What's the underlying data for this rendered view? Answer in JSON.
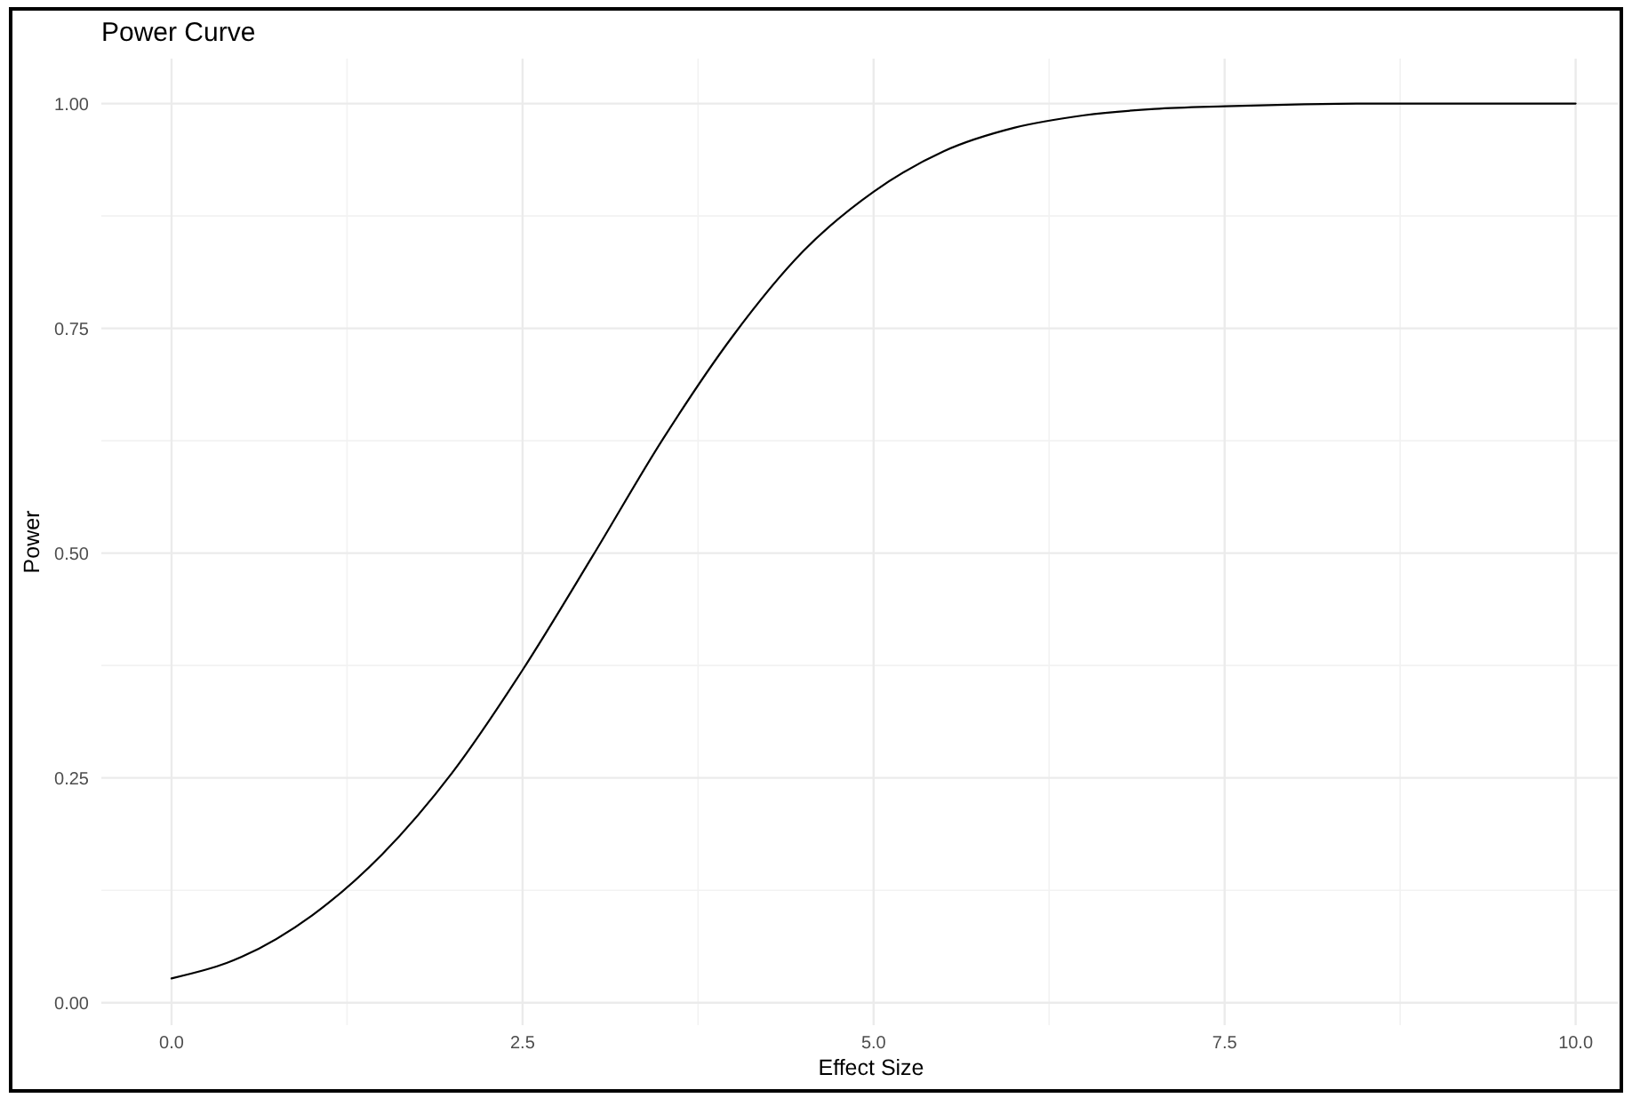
{
  "chart_data": {
    "type": "line",
    "title": "Power Curve",
    "xlabel": "Effect Size",
    "ylabel": "Power",
    "x": [
      0,
      0.5,
      1,
      1.5,
      2,
      2.5,
      3,
      3.5,
      4,
      4.5,
      5,
      5.5,
      6,
      6.5,
      7,
      7.5,
      8,
      8.5,
      9,
      9.5,
      10
    ],
    "series": [
      {
        "color": "#000000",
        "values": [
          0.027,
          0.051,
          0.097,
          0.165,
          0.256,
          0.37,
          0.497,
          0.627,
          0.742,
          0.836,
          0.902,
          0.947,
          0.973,
          0.987,
          0.994,
          0.997,
          0.999,
          1,
          1,
          1,
          1
        ]
      }
    ],
    "xlim": [
      -0.5,
      10.3
    ],
    "ylim": [
      -0.025,
      1.05
    ],
    "xticks": [
      {
        "value": 0,
        "label": "0.0"
      },
      {
        "value": 2.5,
        "label": "2.5"
      },
      {
        "value": 5,
        "label": "5.0"
      },
      {
        "value": 7.5,
        "label": "7.5"
      },
      {
        "value": 10,
        "label": "10.0"
      }
    ],
    "yticks": [
      {
        "value": 0,
        "label": "0.00"
      },
      {
        "value": 0.25,
        "label": "0.25"
      },
      {
        "value": 0.5,
        "label": "0.50"
      },
      {
        "value": 0.75,
        "label": "0.75"
      },
      {
        "value": 1,
        "label": "1.00"
      }
    ],
    "grid": true,
    "line_style": "solid"
  }
}
